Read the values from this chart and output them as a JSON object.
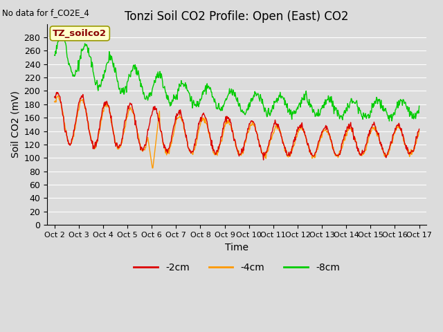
{
  "title": "Tonzi Soil CO2 Profile: Open (East) CO2",
  "subtitle": "No data for f_CO2E_4",
  "xlabel": "Time",
  "ylabel": "Soil CO2 (mV)",
  "ylim": [
    0,
    300
  ],
  "yticks": [
    0,
    20,
    40,
    60,
    80,
    100,
    120,
    140,
    160,
    180,
    200,
    220,
    240,
    260,
    280
  ],
  "xtick_labels": [
    "Oct 2",
    "Oct 3",
    "Oct 4",
    "Oct 5",
    "Oct 6",
    "Oct 7",
    "Oct 8",
    "Oct 9",
    "Oct 10",
    "Oct 11",
    "Oct 12",
    "Oct 13",
    "Oct 14",
    "Oct 15",
    "Oct 16",
    "Oct 17"
  ],
  "colors": {
    "neg2cm": "#dd0000",
    "neg4cm": "#ff9900",
    "neg8cm": "#00cc00"
  },
  "legend_labels": [
    "-2cm",
    "-4cm",
    "-8cm"
  ],
  "box_label": "TZ_soilco2",
  "box_facecolor": "#ffffcc",
  "box_edgecolor": "#999900",
  "plot_background": "#dcdcdc",
  "grid_color": "#ffffff",
  "title_fontsize": 12,
  "axis_fontsize": 10,
  "tick_fontsize": 9,
  "n_points": 720,
  "figwidth": 6.4,
  "figheight": 4.8,
  "dpi": 100
}
